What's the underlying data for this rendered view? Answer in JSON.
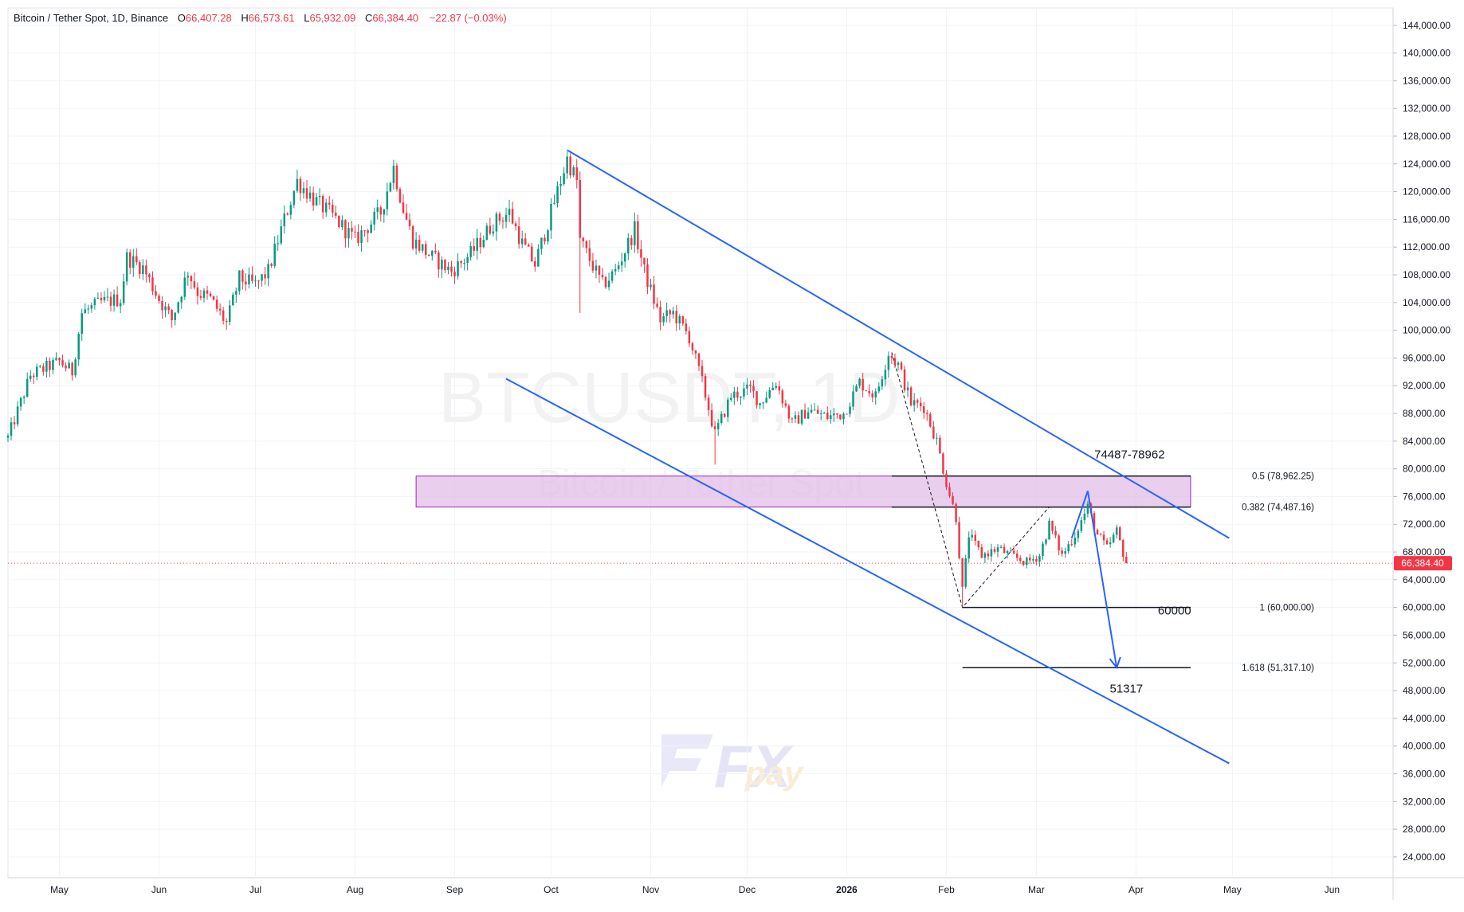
{
  "header": {
    "symbol": "Bitcoin / Tether Spot, 1D, Binance",
    "o_label": "O",
    "o_value": "66,407.28",
    "h_label": "H",
    "h_value": "66,573.61",
    "l_label": "L",
    "l_value": "65,932.09",
    "c_label": "C",
    "c_value": "66,384.40",
    "change": "−22.87 (−0.03%)"
  },
  "watermark": {
    "ticker": "BTCUSDT, 1D",
    "name": "Bitcoin / Tether Spot"
  },
  "logo": {
    "fx": "FX",
    "pay": "pay"
  },
  "colors": {
    "up": "#089981",
    "down": "#f23645",
    "channel": "#2962ff",
    "zone_fill": "#e1bee7",
    "zone_stroke": "#9c27b0",
    "price_tag": "#f23645"
  },
  "chart_data": {
    "type": "candlestick",
    "symbol": "BTCUSDT",
    "timeframe": "1D",
    "exchange": "Binance",
    "y_axis": {
      "ylim": [
        21000,
        146500
      ],
      "ticks": [
        24000,
        28000,
        32000,
        36000,
        40000,
        44000,
        48000,
        52000,
        56000,
        60000,
        64000,
        68000,
        72000,
        76000,
        80000,
        84000,
        88000,
        92000,
        96000,
        100000,
        104000,
        108000,
        112000,
        116000,
        120000,
        124000,
        128000,
        132000,
        136000,
        140000,
        144000
      ],
      "tick_labels": [
        "24,000.00",
        "28,000.00",
        "32,000.00",
        "36,000.00",
        "40,000.00",
        "44,000.00",
        "48,000.00",
        "52,000.00",
        "56,000.00",
        "60,000.00",
        "64,000.00",
        "68,000.00",
        "72,000.00",
        "76,000.00",
        "80,000.00",
        "84,000.00",
        "88,000.00",
        "92,000.00",
        "96,000.00",
        "100,000.00",
        "104,000.00",
        "108,000.00",
        "112,000.00",
        "116,000.00",
        "120,000.00",
        "124,000.00",
        "128,000.00",
        "132,000.00",
        "136,000.00",
        "140,000.00",
        "144,000.00"
      ]
    },
    "x_axis": {
      "start": "2025-04-15",
      "end": "2026-06-20",
      "ticks": [
        {
          "date": "2025-05-01",
          "label": "May",
          "bold": false
        },
        {
          "date": "2025-06-01",
          "label": "Jun",
          "bold": false
        },
        {
          "date": "2025-07-01",
          "label": "Jul",
          "bold": false
        },
        {
          "date": "2025-08-01",
          "label": "Aug",
          "bold": false
        },
        {
          "date": "2025-09-01",
          "label": "Sep",
          "bold": false
        },
        {
          "date": "2025-10-01",
          "label": "Oct",
          "bold": false
        },
        {
          "date": "2025-11-01",
          "label": "Nov",
          "bold": false
        },
        {
          "date": "2025-12-01",
          "label": "Dec",
          "bold": false
        },
        {
          "date": "2026-01-01",
          "label": "2026",
          "bold": true
        },
        {
          "date": "2026-02-01",
          "label": "Feb",
          "bold": false
        },
        {
          "date": "2026-03-01",
          "label": "Mar",
          "bold": false
        },
        {
          "date": "2026-04-01",
          "label": "Apr",
          "bold": false
        },
        {
          "date": "2026-05-01",
          "label": "May",
          "bold": false
        },
        {
          "date": "2026-06-01",
          "label": "Jun",
          "bold": false
        }
      ]
    },
    "price_path": [
      [
        "2025-04-15",
        84500
      ],
      [
        "2025-04-22",
        93500
      ],
      [
        "2025-05-01",
        95500
      ],
      [
        "2025-05-05",
        94000
      ],
      [
        "2025-05-08",
        102500
      ],
      [
        "2025-05-14",
        104000
      ],
      [
        "2025-05-20",
        104500
      ],
      [
        "2025-05-22",
        110500
      ],
      [
        "2025-05-27",
        109000
      ],
      [
        "2025-06-01",
        104500
      ],
      [
        "2025-06-05",
        101500
      ],
      [
        "2025-06-10",
        108500
      ],
      [
        "2025-06-13",
        105500
      ],
      [
        "2025-06-17",
        104500
      ],
      [
        "2025-06-22",
        101000
      ],
      [
        "2025-06-26",
        107500
      ],
      [
        "2025-07-01",
        106500
      ],
      [
        "2025-07-05",
        108500
      ],
      [
        "2025-07-10",
        116000
      ],
      [
        "2025-07-14",
        121500
      ],
      [
        "2025-07-20",
        118500
      ],
      [
        "2025-07-25",
        116500
      ],
      [
        "2025-08-01",
        113000
      ],
      [
        "2025-08-04",
        114500
      ],
      [
        "2025-08-09",
        117000
      ],
      [
        "2025-08-13",
        123500
      ],
      [
        "2025-08-16",
        117500
      ],
      [
        "2025-08-19",
        113000
      ],
      [
        "2025-08-25",
        110500
      ],
      [
        "2025-08-31",
        108500
      ],
      [
        "2025-09-06",
        111000
      ],
      [
        "2025-09-13",
        115500
      ],
      [
        "2025-09-18",
        117000
      ],
      [
        "2025-09-22",
        112500
      ],
      [
        "2025-09-26",
        109500
      ],
      [
        "2025-10-01",
        117000
      ],
      [
        "2025-10-06",
        124700
      ],
      [
        "2025-10-09",
        121500
      ],
      [
        "2025-10-10",
        113000
      ],
      [
        "2025-10-17",
        106500
      ],
      [
        "2025-10-21",
        108500
      ],
      [
        "2025-10-27",
        114500
      ],
      [
        "2025-10-30",
        108500
      ],
      [
        "2025-11-04",
        101500
      ],
      [
        "2025-11-08",
        102500
      ],
      [
        "2025-11-13",
        99000
      ],
      [
        "2025-11-17",
        92500
      ],
      [
        "2025-11-21",
        85000
      ],
      [
        "2025-11-26",
        90500
      ],
      [
        "2025-12-02",
        91500
      ],
      [
        "2025-12-05",
        89500
      ],
      [
        "2025-12-10",
        92500
      ],
      [
        "2025-12-15",
        86500
      ],
      [
        "2025-12-20",
        88500
      ],
      [
        "2025-12-26",
        87500
      ],
      [
        "2025-12-31",
        88000
      ],
      [
        "2026-01-05",
        92500
      ],
      [
        "2026-01-10",
        90500
      ],
      [
        "2026-01-14",
        96800
      ],
      [
        "2026-01-17",
        95000
      ],
      [
        "2026-01-21",
        89500
      ],
      [
        "2026-01-25",
        89000
      ],
      [
        "2026-01-29",
        84000
      ],
      [
        "2026-02-01",
        78000
      ],
      [
        "2026-02-04",
        73000
      ],
      [
        "2026-02-06",
        62500
      ],
      [
        "2026-02-08",
        70500
      ],
      [
        "2026-02-12",
        67500
      ],
      [
        "2026-02-17",
        68500
      ],
      [
        "2026-02-21",
        67500
      ],
      [
        "2026-02-26",
        66500
      ],
      [
        "2026-03-02",
        67500
      ],
      [
        "2026-03-05",
        72000
      ],
      [
        "2026-03-09",
        67500
      ],
      [
        "2026-03-13",
        70500
      ],
      [
        "2026-03-17",
        74500
      ],
      [
        "2026-03-20",
        70500
      ],
      [
        "2026-03-23",
        68500
      ],
      [
        "2026-03-26",
        71000
      ],
      [
        "2026-03-29",
        66384
      ]
    ],
    "last_price": {
      "value": 66384.4,
      "label": "66,384.40"
    },
    "channel_lines": [
      {
        "name": "upper",
        "from": [
          "2025-10-06",
          126000
        ],
        "to": [
          "2026-04-30",
          70000
        ]
      },
      {
        "name": "lower",
        "from": [
          "2025-09-17",
          93000
        ],
        "to": [
          "2026-04-30",
          37500
        ]
      }
    ],
    "zone": {
      "from": "2025-08-20",
      "to": "2026-04-18",
      "top": 78962.25,
      "bottom": 74487.16
    },
    "fib_levels": [
      {
        "ratio": "0.5",
        "value": 78962.25,
        "label": "0.5 (78,962.25)"
      },
      {
        "ratio": "0.382",
        "value": 74487.16,
        "label": "0.382 (74,487.16)"
      },
      {
        "ratio": "1",
        "value": 60000.0,
        "label": "1 (60,000.00)"
      },
      {
        "ratio": "1.618",
        "value": 51317.1,
        "label": "1.618 (51,317.10)"
      }
    ],
    "fib_start_date": "2026-01-15",
    "fib_ext_start_date": "2026-02-06",
    "fib_end_date": "2026-04-18",
    "fib_dashed_path": [
      [
        "2026-01-15",
        96800
      ],
      [
        "2026-02-06",
        60000
      ],
      [
        "2026-03-05",
        74487
      ]
    ],
    "projection": {
      "points": [
        [
          "2026-03-12",
          70000
        ],
        [
          "2026-03-17",
          76800
        ],
        [
          "2026-03-26",
          51317
        ]
      ]
    },
    "annotations": [
      {
        "text": "74487-78962",
        "date": "2026-03-30",
        "price": 81500
      },
      {
        "text": "60000",
        "date": "2026-04-13",
        "price": 59000
      },
      {
        "text": "51317",
        "date": "2026-03-29",
        "price": 47700
      }
    ]
  }
}
